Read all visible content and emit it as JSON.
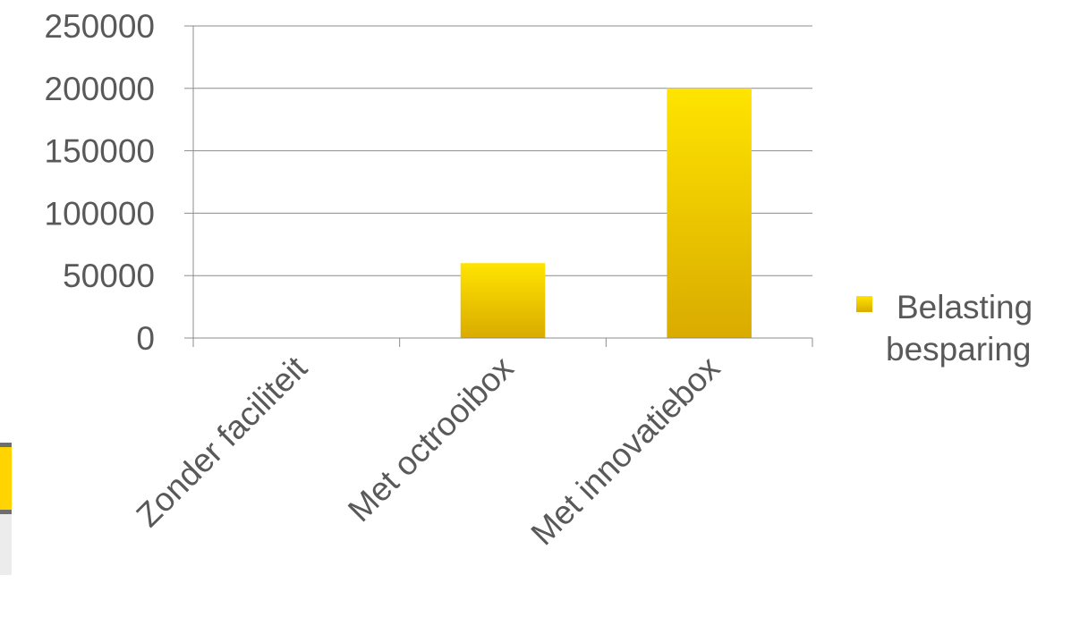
{
  "chart_data": {
    "type": "bar",
    "title": "",
    "xlabel": "",
    "ylabel": "",
    "categories": [
      "Zonder faciliteit",
      "Met octrooibox",
      "Met innovatiebox"
    ],
    "series": [
      {
        "name": "Belasting besparing",
        "values": [
          0,
          60000,
          200000
        ]
      }
    ],
    "ylim": [
      0,
      250000
    ],
    "yticks": [
      "0",
      "50000",
      "100000",
      "150000",
      "200000",
      "250000"
    ],
    "grid": true,
    "legend_position": "right",
    "legend_lines": [
      "Belasting",
      "besparing"
    ],
    "colors": {
      "bar_top": "#ffe400",
      "bar_bottom": "#d9ab00",
      "grid": "#8c8c8c",
      "text": "#595959"
    }
  }
}
